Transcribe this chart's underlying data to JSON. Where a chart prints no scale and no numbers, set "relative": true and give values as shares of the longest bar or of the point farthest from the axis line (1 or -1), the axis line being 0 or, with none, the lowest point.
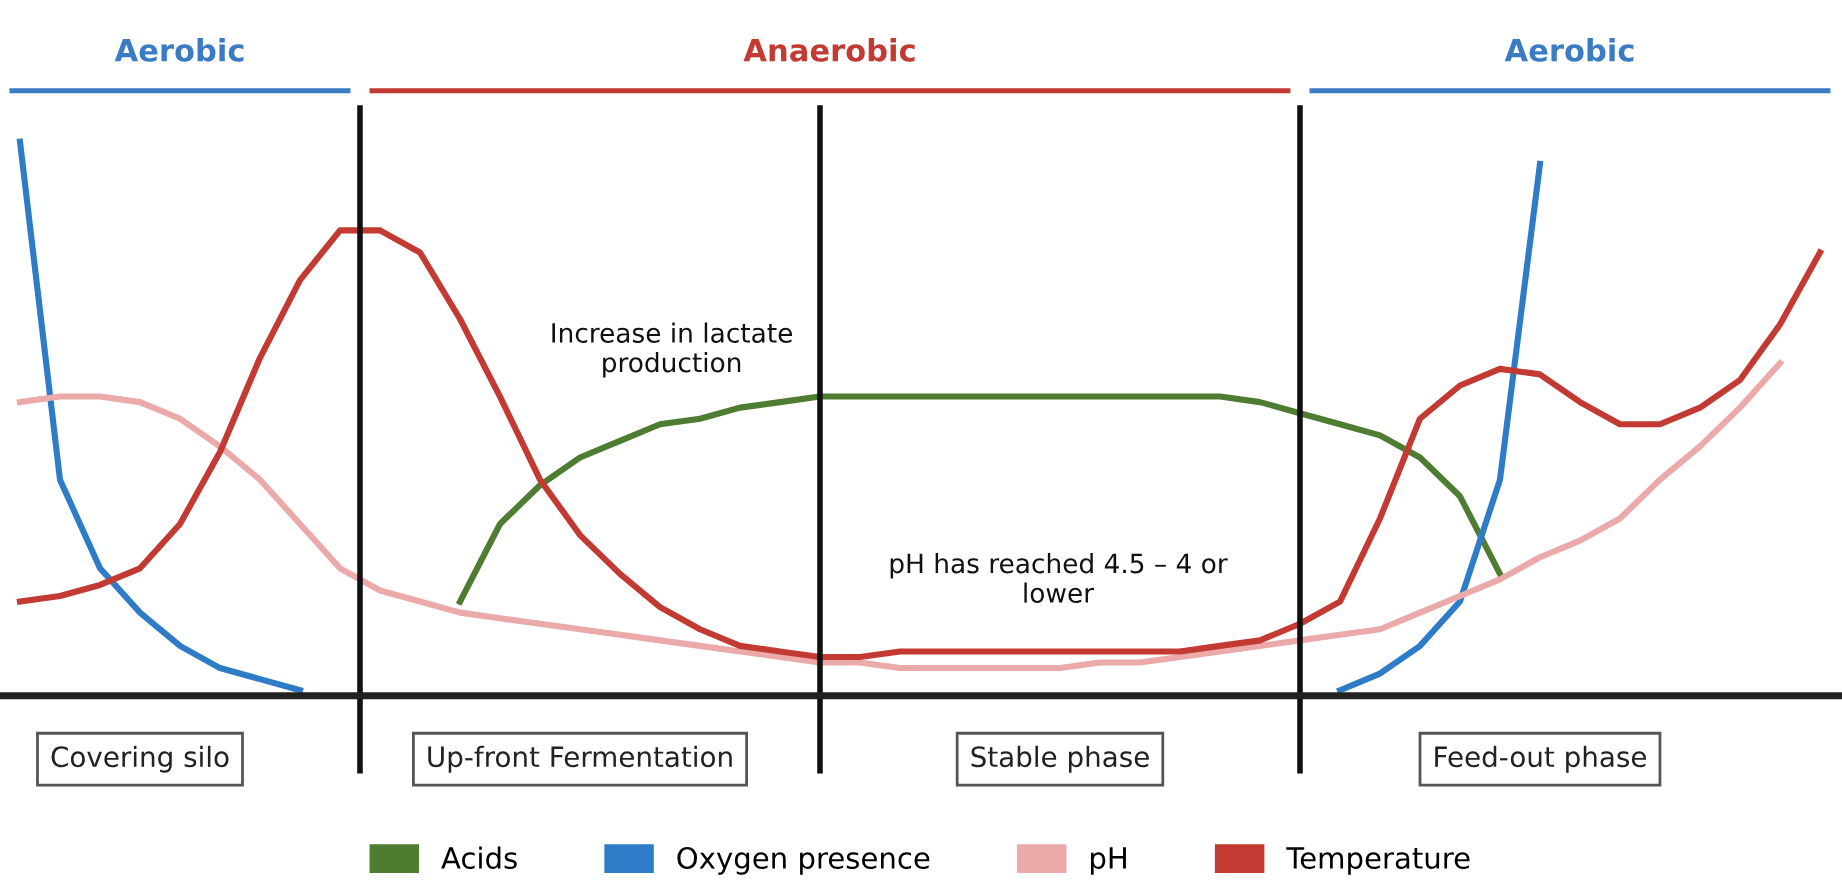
{
  "chart_data": {
    "type": "line",
    "relative": true,
    "legend": "bottom",
    "marker": "none",
    "line_style": "solid",
    "tick_labels": "x",
    "categories": [
      null,
      null,
      null,
      "Covering silo",
      null,
      null,
      null,
      null,
      null,
      null,
      null,
      null,
      null,
      null,
      "Up-front Fermentation",
      null,
      null,
      null,
      null,
      null,
      null,
      null,
      null,
      null,
      null,
      null,
      "Stable phase",
      null,
      null,
      null,
      null,
      null,
      null,
      null,
      null,
      null,
      null,
      null,
      "Feed-out phase",
      null,
      null,
      null,
      null,
      null,
      null,
      null
    ],
    "series": [
      {
        "name": "Acids",
        "color": "#4e7d31",
        "values": [
          null,
          null,
          null,
          null,
          null,
          null,
          null,
          null,
          null,
          null,
          null,
          0.17,
          0.31,
          0.38,
          0.43,
          0.46,
          0.49,
          0.5,
          0.52,
          0.53,
          0.54,
          0.54,
          0.54,
          0.54,
          0.54,
          0.54,
          0.54,
          0.54,
          0.54,
          0.54,
          0.54,
          0.53,
          0.51,
          0.49,
          0.47,
          0.43,
          0.36,
          0.22,
          null,
          null,
          null,
          null,
          null,
          null,
          null,
          null
        ]
      },
      {
        "name": "Oxygen presence",
        "color": "#2e7cc8",
        "values": [
          1.0,
          0.39,
          0.23,
          0.15,
          0.09,
          0.05,
          0.03,
          0.01,
          null,
          null,
          null,
          null,
          null,
          null,
          null,
          null,
          null,
          null,
          null,
          null,
          null,
          null,
          null,
          null,
          null,
          null,
          null,
          null,
          null,
          null,
          null,
          null,
          null,
          null,
          null,
          null,
          null,
          null,
          null,
          null,
          null,
          null,
          null,
          null,
          null,
          null
        ]
      },
      {
        "color": "#2e7cc8",
        "values": [
          null,
          null,
          null,
          null,
          null,
          null,
          null,
          null,
          null,
          null,
          null,
          null,
          null,
          null,
          null,
          null,
          null,
          null,
          null,
          null,
          null,
          null,
          null,
          null,
          null,
          null,
          null,
          null,
          null,
          null,
          null,
          null,
          null,
          0.01,
          0.04,
          0.09,
          0.17,
          0.39,
          0.96,
          null,
          null,
          null,
          null,
          null,
          null,
          null
        ]
      },
      {
        "name": "pH",
        "color": "#eba9a9",
        "values": [
          0.53,
          0.54,
          0.54,
          0.53,
          0.5,
          0.45,
          0.39,
          0.31,
          0.23,
          0.19,
          0.17,
          0.15,
          0.14,
          0.13,
          0.12,
          0.11,
          0.1,
          0.09,
          0.08,
          0.07,
          0.06,
          0.06,
          0.05,
          0.05,
          0.05,
          0.05,
          0.05,
          0.06,
          0.06,
          0.07,
          0.08,
          0.09,
          0.1,
          0.11,
          0.12,
          0.15,
          0.18,
          0.21,
          0.25,
          0.28,
          0.32,
          0.39,
          0.45,
          0.52,
          0.6,
          null
        ]
      },
      {
        "name": "Temperature",
        "color": "#c33a32",
        "values": [
          0.17,
          0.18,
          0.2,
          0.23,
          0.31,
          0.44,
          0.61,
          0.75,
          0.84,
          0.84,
          0.8,
          0.68,
          0.54,
          0.39,
          0.29,
          0.22,
          0.16,
          0.12,
          0.09,
          0.08,
          0.07,
          0.07,
          0.08,
          0.08,
          0.08,
          0.08,
          0.08,
          0.08,
          0.08,
          0.08,
          0.09,
          0.1,
          0.13,
          0.17,
          0.32,
          0.5,
          0.56,
          0.59,
          0.58,
          0.53,
          0.49,
          0.49,
          0.52,
          0.57,
          0.67,
          0.8
        ]
      }
    ],
    "annotations": [
      "Increase in lactate\nproduction",
      "pH has reached 4.5 – 4 or\nlower",
      "Aerobic",
      "Anaerobic",
      "Aerobic"
    ]
  }
}
